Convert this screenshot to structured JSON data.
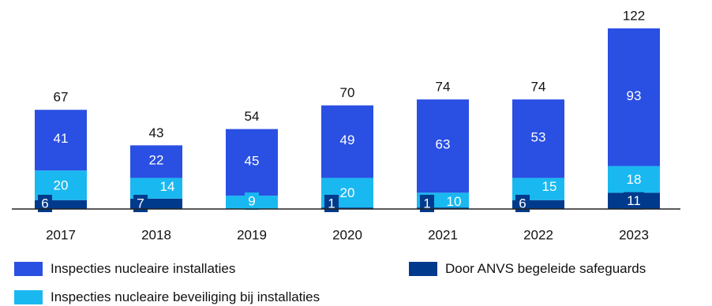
{
  "chart_data": {
    "type": "bar",
    "stacked": true,
    "categories": [
      "2017",
      "2018",
      "2019",
      "2020",
      "2021",
      "2022",
      "2023"
    ],
    "series": [
      {
        "name": "Door ANVS begeleide safeguards",
        "color": "#003a8c",
        "values": [
          6,
          7,
          0,
          1,
          1,
          6,
          11
        ]
      },
      {
        "name": "Inspecties nucleaire beveiliging bij installaties",
        "color": "#1ab8f0",
        "values": [
          20,
          14,
          9,
          20,
          10,
          15,
          18
        ]
      },
      {
        "name": "Inspecties nucleaire installaties",
        "color": "#2a4fe3",
        "values": [
          41,
          22,
          45,
          49,
          63,
          53,
          93
        ]
      }
    ],
    "totals": [
      67,
      43,
      54,
      70,
      74,
      74,
      122
    ],
    "segment_labels": [
      [
        "6",
        "20",
        "41"
      ],
      [
        "7",
        "14",
        "22"
      ],
      [
        "",
        "9",
        "45"
      ],
      [
        "1",
        "20",
        "49"
      ],
      [
        "1",
        "10",
        "63"
      ],
      [
        "6",
        "15",
        "53"
      ],
      [
        "11",
        "18",
        "93"
      ]
    ],
    "ylim": [
      0,
      125
    ],
    "grid": false,
    "legend_position": "bottom"
  }
}
